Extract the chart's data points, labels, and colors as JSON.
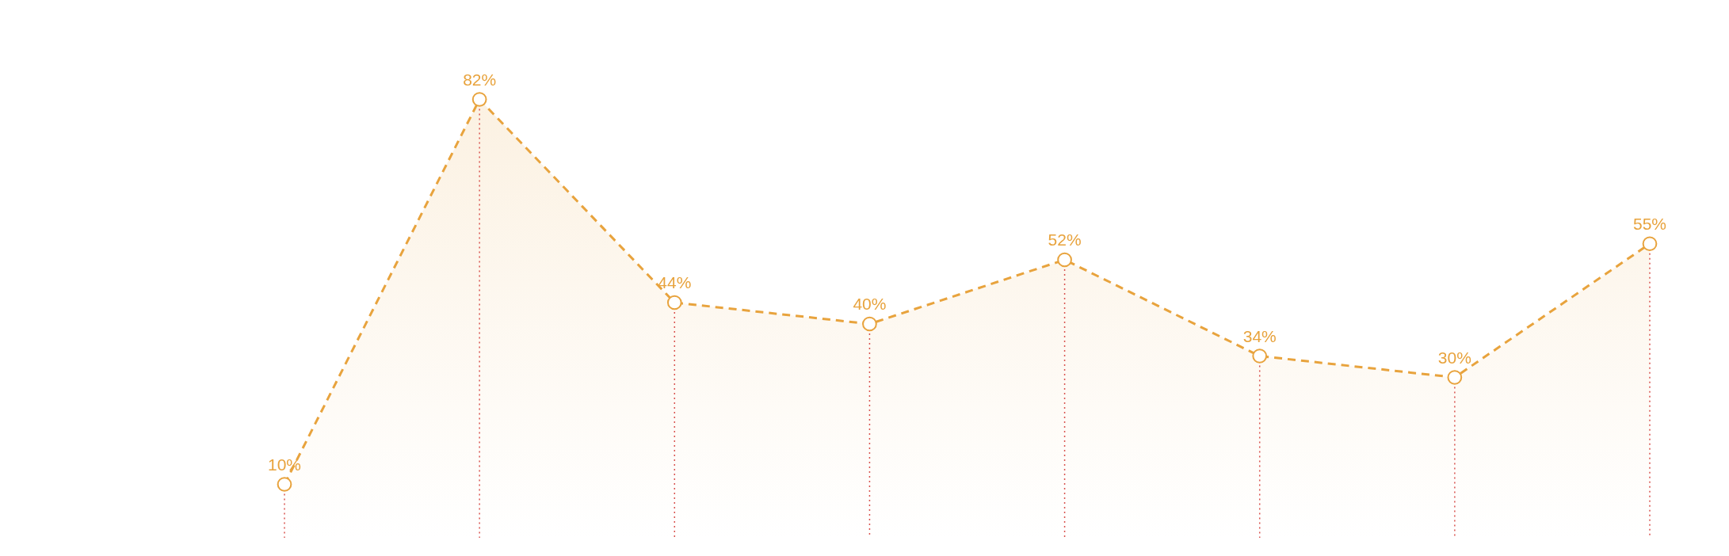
{
  "chart_data": {
    "type": "area",
    "categories": [
      null,
      null,
      null,
      null,
      null,
      null,
      null,
      null
    ],
    "series": [
      {
        "color": "#e8a33d",
        "values": [
          10,
          82,
          44,
          40,
          52,
          34,
          30,
          55
        ],
        "value_labels": [
          "10%",
          "82%",
          "44%",
          "40%",
          "52%",
          "34%",
          "30%",
          "55%"
        ]
      }
    ],
    "ylim": [
      0,
      100
    ],
    "tick_labels": false,
    "grid": false,
    "marker": "circle",
    "line_style": "dashed"
  }
}
